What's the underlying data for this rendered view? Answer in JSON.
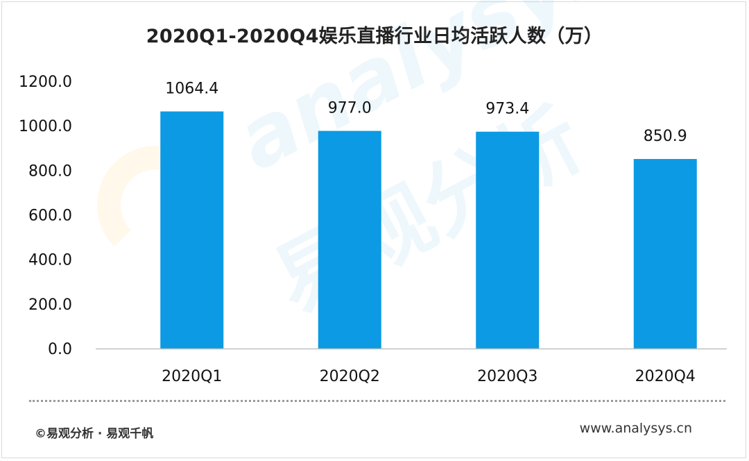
{
  "chart_data": {
    "type": "bar",
    "title": "2020Q1-2020Q4娱乐直播行业日均活跃人数（万）",
    "categories": [
      "2020Q1",
      "2020Q2",
      "2020Q3",
      "2020Q4"
    ],
    "values": [
      1064.4,
      977.0,
      973.4,
      850.9
    ],
    "data_labels": [
      "1064.4",
      "977.0",
      "973.4",
      "850.9"
    ],
    "yticks": [
      "0.0",
      "200.0",
      "400.0",
      "600.0",
      "800.0",
      "1000.0",
      "1200.0"
    ],
    "ylim": [
      0,
      1200
    ],
    "grid": false,
    "legend": "none",
    "bar_color": "#0b9ae3"
  },
  "watermark": {
    "brand_en": "analysys",
    "brand_cn": "易观分析"
  },
  "footer": {
    "copyright": "©易观分析 · 易观千帆",
    "url": "www.analysys.cn"
  },
  "colors": {
    "bar": "#0b9ae3",
    "axis": "#bfbfbf",
    "text": "#111111"
  }
}
